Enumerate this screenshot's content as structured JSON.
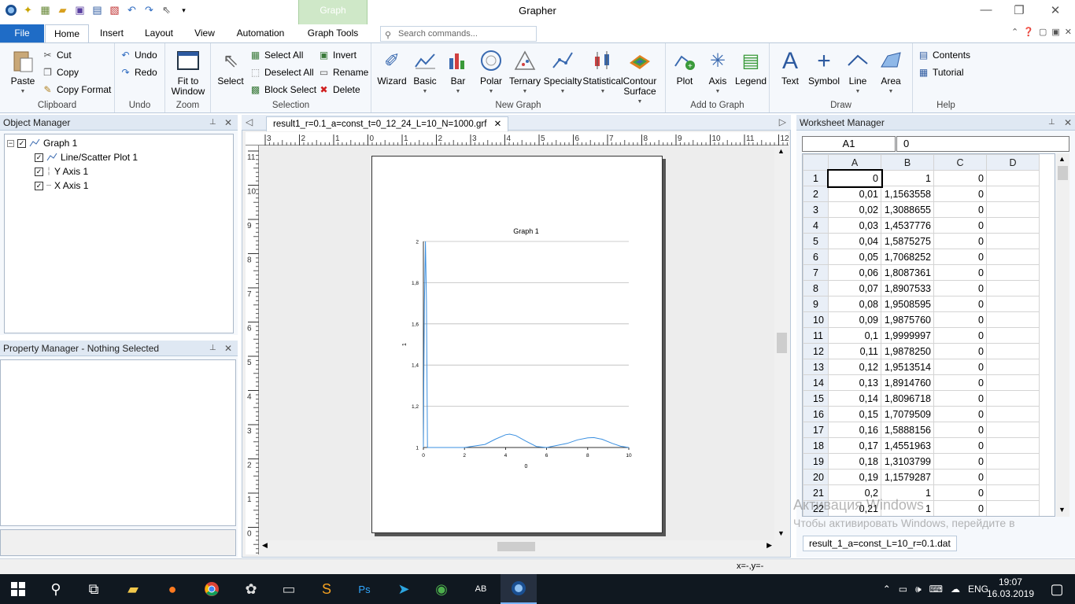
{
  "app": {
    "title": "Grapher",
    "context_tab": "Graph"
  },
  "ribbon_tabs": [
    "File",
    "Home",
    "Insert",
    "Layout",
    "View",
    "Automation",
    "Graph Tools"
  ],
  "search": {
    "placeholder": "Search commands..."
  },
  "groups": {
    "clipboard": {
      "label": "Clipboard",
      "paste": "Paste",
      "cut": "Cut",
      "copy": "Copy",
      "copy_format": "Copy Format"
    },
    "undo": {
      "label": "Undo",
      "undo": "Undo",
      "redo": "Redo"
    },
    "zoom": {
      "label": "Zoom",
      "fit_line1": "Fit to",
      "fit_line2": "Window"
    },
    "selection": {
      "label": "Selection",
      "select": "Select",
      "select_all": "Select All",
      "deselect_all": "Deselect All",
      "block_select": "Block Select",
      "invert": "Invert",
      "rename": "Rename",
      "delete": "Delete"
    },
    "new_graph": {
      "label": "New Graph",
      "wizard": "Wizard",
      "basic": "Basic",
      "bar": "Bar",
      "polar": "Polar",
      "ternary": "Ternary",
      "specialty": "Specialty",
      "statistical": "Statistical",
      "contour1": "Contour",
      "contour2": "Surface"
    },
    "add_to_graph": {
      "label": "Add to Graph",
      "plot": "Plot",
      "axis": "Axis",
      "legend": "Legend"
    },
    "draw": {
      "label": "Draw",
      "text": "Text",
      "symbol": "Symbol",
      "line": "Line",
      "area": "Area"
    },
    "help": {
      "label": "Help",
      "contents": "Contents",
      "tutorial": "Tutorial"
    }
  },
  "object_manager": {
    "title": "Object Manager",
    "items": [
      "Graph 1",
      "Line/Scatter Plot 1",
      "Y Axis 1",
      "X Axis 1"
    ]
  },
  "property_manager": {
    "title": "Property Manager - Nothing Selected"
  },
  "document": {
    "tab": "result1_r=0.1_a=const_t=0_12_24_L=10_N=1000.grf",
    "hruler_labels": [
      "3",
      "2",
      "1",
      "0",
      "1",
      "2",
      "3",
      "4",
      "5",
      "6",
      "7",
      "8",
      "9",
      "10",
      "11",
      "12"
    ],
    "vruler_labels": [
      "11",
      "10",
      "9",
      "8",
      "7",
      "6",
      "5",
      "4",
      "3",
      "2",
      "1",
      "0"
    ]
  },
  "chart_data": {
    "type": "line",
    "title": "Graph 1",
    "xlabel": "0",
    "ylabel": "1",
    "xlim": [
      0,
      10
    ],
    "ylim": [
      1,
      2
    ],
    "xticks": [
      "0",
      "2",
      "4",
      "6",
      "8",
      "10"
    ],
    "yticks": [
      "1",
      "1,2",
      "1,4",
      "1,6",
      "1,8",
      "2"
    ],
    "grid": "horizontal",
    "color": "#3a8fe0",
    "series": [
      {
        "x": [
          0,
          0.01,
          0.02,
          0.03,
          0.05,
          0.1,
          0.15,
          0.2,
          0.3,
          0.5,
          1,
          2,
          3,
          3.5,
          4,
          4.2,
          4.5,
          5,
          5.5,
          6,
          7,
          7.5,
          8,
          8.3,
          8.7,
          9.2,
          9.6,
          10
        ],
        "y": [
          1,
          1.156,
          1.309,
          1.454,
          1.7,
          2,
          1.708,
          1,
          1,
          1,
          1,
          1,
          1.015,
          1.04,
          1.062,
          1.065,
          1.058,
          1.03,
          1.005,
          1.0,
          1.02,
          1.037,
          1.047,
          1.048,
          1.04,
          1.02,
          1.006,
          1.0
        ]
      }
    ]
  },
  "worksheet": {
    "title": "Worksheet Manager",
    "cell_ref": "A1",
    "cell_value": "0",
    "columns": [
      "A",
      "B",
      "C",
      "D"
    ],
    "rows": [
      [
        "1",
        "0",
        "1",
        "0",
        ""
      ],
      [
        "2",
        "0,01",
        "1,1563558",
        "0",
        ""
      ],
      [
        "3",
        "0,02",
        "1,3088655",
        "0",
        ""
      ],
      [
        "4",
        "0,03",
        "1,4537776",
        "0",
        ""
      ],
      [
        "5",
        "0,04",
        "1,5875275",
        "0",
        ""
      ],
      [
        "6",
        "0,05",
        "1,7068252",
        "0",
        ""
      ],
      [
        "7",
        "0,06",
        "1,8087361",
        "0",
        ""
      ],
      [
        "8",
        "0,07",
        "1,8907533",
        "0",
        ""
      ],
      [
        "9",
        "0,08",
        "1,9508595",
        "0",
        ""
      ],
      [
        "10",
        "0,09",
        "1,9875760",
        "0",
        ""
      ],
      [
        "11",
        "0,1",
        "1,9999997",
        "0",
        ""
      ],
      [
        "12",
        "0,11",
        "1,9878250",
        "0",
        ""
      ],
      [
        "13",
        "0,12",
        "1,9513514",
        "0",
        ""
      ],
      [
        "14",
        "0,13",
        "1,8914760",
        "0",
        ""
      ],
      [
        "15",
        "0,14",
        "1,8096718",
        "0",
        ""
      ],
      [
        "16",
        "0,15",
        "1,7079509",
        "0",
        ""
      ],
      [
        "17",
        "0,16",
        "1,5888156",
        "0",
        ""
      ],
      [
        "18",
        "0,17",
        "1,4551963",
        "0",
        ""
      ],
      [
        "19",
        "0,18",
        "1,3103799",
        "0",
        ""
      ],
      [
        "20",
        "0,19",
        "1,1579287",
        "0",
        ""
      ],
      [
        "21",
        "0,2",
        "1",
        "0",
        ""
      ],
      [
        "22",
        "0,21",
        "1",
        "0",
        ""
      ]
    ],
    "sheet_tab": "result_1_a=const_L=10_r=0.1.dat"
  },
  "watermark": {
    "line1": "Активация Windows",
    "line2": "Чтобы активировать Windows, перейдите в"
  },
  "status": {
    "coords": "x=-,y=-"
  },
  "taskbar": {
    "lang": "ENG",
    "time": "19:07",
    "date": "16.03.2019"
  }
}
